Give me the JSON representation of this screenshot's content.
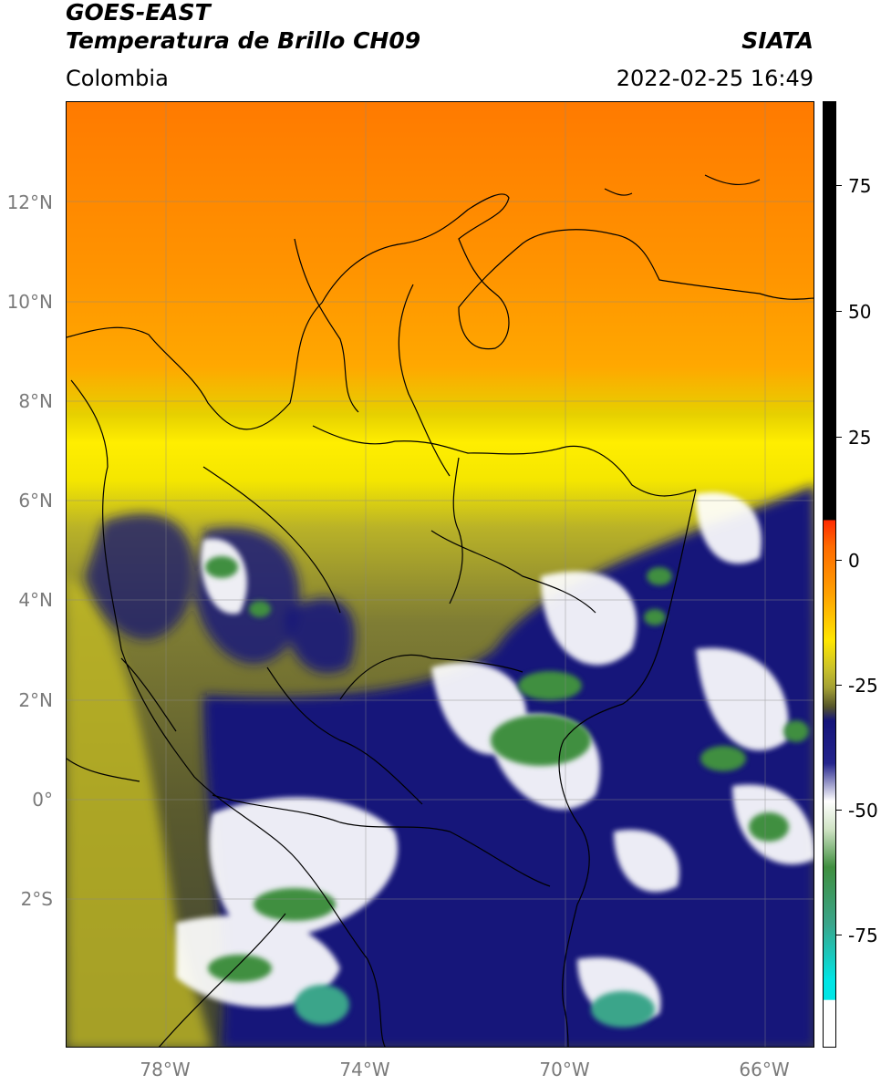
{
  "header": {
    "satellite": "GOES-EAST",
    "product": "Temperatura de Brillo CH09",
    "region": "Colombia",
    "organization": "SIATA",
    "timestamp": "2022-02-25 16:49"
  },
  "map": {
    "lon_range": [
      -80,
      -65
    ],
    "lat_range": [
      -5,
      14
    ],
    "lat_ticks": [
      {
        "value": 12,
        "label": "12°N"
      },
      {
        "value": 10,
        "label": "10°N"
      },
      {
        "value": 8,
        "label": "8°N"
      },
      {
        "value": 6,
        "label": "6°N"
      },
      {
        "value": 4,
        "label": "4°N"
      },
      {
        "value": 2,
        "label": "2°N"
      },
      {
        "value": 0,
        "label": "0°"
      },
      {
        "value": -2,
        "label": "2°S"
      }
    ],
    "lon_ticks": [
      {
        "value": -78,
        "label": "78°W"
      },
      {
        "value": -74,
        "label": "74°W"
      },
      {
        "value": -70,
        "label": "70°W"
      },
      {
        "value": -66,
        "label": "66°W"
      }
    ],
    "gridlines": true,
    "colors": {
      "warm_orange": "#ff8a00",
      "orange": "#ffa000",
      "yellow": "#ffe800",
      "olive": "#b9b228",
      "dark_olive": "#55552a",
      "navy": "#14147a",
      "white": "#ffffff",
      "green": "#3f8f3f",
      "teal": "#3aa58a",
      "border": "#000000"
    }
  },
  "colorbar": {
    "range": [
      -95,
      90
    ],
    "ticks": [
      {
        "value": 75,
        "label": "75"
      },
      {
        "value": 50,
        "label": "50"
      },
      {
        "value": 25,
        "label": "25"
      },
      {
        "value": 0,
        "label": "0"
      },
      {
        "value": -25,
        "label": "-25"
      },
      {
        "value": -50,
        "label": "-50"
      },
      {
        "value": -75,
        "label": "-75"
      }
    ]
  }
}
